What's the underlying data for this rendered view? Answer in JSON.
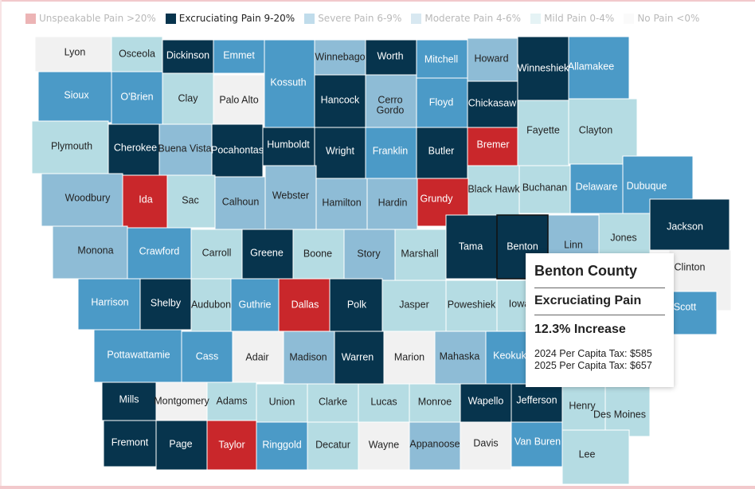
{
  "colors": {
    "unspeakable": "#c9272b",
    "excruciating": "#07344d",
    "severe": "#4b9ac7",
    "moderate": "#8ebcd6",
    "mild": "#b5dce3",
    "none": "#f1f1f1",
    "label_light": "#ffffff",
    "label_dark": "#222222"
  },
  "legend": [
    {
      "label": "Unspeakable Pain >20%",
      "category": "unspeakable",
      "active": false
    },
    {
      "label": "Excruciating Pain 9-20%",
      "category": "excruciating",
      "active": true
    },
    {
      "label": "Severe Pain 6-9%",
      "category": "severe",
      "active": false
    },
    {
      "label": "Moderate Pain 4-6%",
      "category": "moderate",
      "active": false
    },
    {
      "label": "Mild Pain 0-4%",
      "category": "mild",
      "active": false
    },
    {
      "label": "No Pain <0%",
      "category": "none",
      "active": false
    }
  ],
  "counties": [
    {
      "name": "Lyon",
      "category": "none"
    },
    {
      "name": "Osceola",
      "category": "mild"
    },
    {
      "name": "Dickinson",
      "category": "excruciating"
    },
    {
      "name": "Emmet",
      "category": "severe"
    },
    {
      "name": "Kossuth",
      "category": "severe"
    },
    {
      "name": "Winnebago",
      "category": "moderate"
    },
    {
      "name": "Worth",
      "category": "excruciating"
    },
    {
      "name": "Mitchell",
      "category": "severe"
    },
    {
      "name": "Howard",
      "category": "moderate"
    },
    {
      "name": "Winneshiek",
      "category": "excruciating"
    },
    {
      "name": "Allamakee",
      "category": "severe"
    },
    {
      "name": "Sioux",
      "category": "severe"
    },
    {
      "name": "O'Brien",
      "category": "severe"
    },
    {
      "name": "Clay",
      "category": "mild"
    },
    {
      "name": "Palo Alto",
      "category": "none"
    },
    {
      "name": "Hancock",
      "category": "excruciating"
    },
    {
      "name": "Cerro Gordo",
      "category": "moderate"
    },
    {
      "name": "Floyd",
      "category": "severe"
    },
    {
      "name": "Chickasaw",
      "category": "excruciating"
    },
    {
      "name": "Fayette",
      "category": "mild"
    },
    {
      "name": "Clayton",
      "category": "mild"
    },
    {
      "name": "Plymouth",
      "category": "mild"
    },
    {
      "name": "Cherokee",
      "category": "excruciating"
    },
    {
      "name": "Buena Vista",
      "category": "moderate"
    },
    {
      "name": "Pocahontas",
      "category": "excruciating"
    },
    {
      "name": "Humboldt",
      "category": "excruciating"
    },
    {
      "name": "Wright",
      "category": "excruciating"
    },
    {
      "name": "Franklin",
      "category": "severe"
    },
    {
      "name": "Butler",
      "category": "excruciating"
    },
    {
      "name": "Bremer",
      "category": "unspeakable"
    },
    {
      "name": "Black Hawk",
      "category": "mild"
    },
    {
      "name": "Buchanan",
      "category": "mild"
    },
    {
      "name": "Delaware",
      "category": "severe"
    },
    {
      "name": "Dubuque",
      "category": "severe"
    },
    {
      "name": "Woodbury",
      "category": "moderate"
    },
    {
      "name": "Ida",
      "category": "unspeakable"
    },
    {
      "name": "Sac",
      "category": "mild"
    },
    {
      "name": "Calhoun",
      "category": "moderate"
    },
    {
      "name": "Webster",
      "category": "moderate"
    },
    {
      "name": "Hamilton",
      "category": "moderate"
    },
    {
      "name": "Hardin",
      "category": "moderate"
    },
    {
      "name": "Grundy",
      "category": "unspeakable"
    },
    {
      "name": "Tama",
      "category": "excruciating"
    },
    {
      "name": "Benton",
      "category": "excruciating"
    },
    {
      "name": "Linn",
      "category": "moderate"
    },
    {
      "name": "Jones",
      "category": "mild"
    },
    {
      "name": "Jackson",
      "category": "excruciating"
    },
    {
      "name": "Monona",
      "category": "moderate"
    },
    {
      "name": "Crawford",
      "category": "severe"
    },
    {
      "name": "Carroll",
      "category": "mild"
    },
    {
      "name": "Greene",
      "category": "excruciating"
    },
    {
      "name": "Boone",
      "category": "mild"
    },
    {
      "name": "Story",
      "category": "moderate"
    },
    {
      "name": "Marshall",
      "category": "mild"
    },
    {
      "name": "Clinton",
      "category": "none"
    },
    {
      "name": "Harrison",
      "category": "severe"
    },
    {
      "name": "Shelby",
      "category": "excruciating"
    },
    {
      "name": "Audubon",
      "category": "mild"
    },
    {
      "name": "Guthrie",
      "category": "severe"
    },
    {
      "name": "Dallas",
      "category": "unspeakable"
    },
    {
      "name": "Polk",
      "category": "excruciating"
    },
    {
      "name": "Jasper",
      "category": "mild"
    },
    {
      "name": "Poweshiek",
      "category": "mild"
    },
    {
      "name": "Iowa",
      "category": "mild"
    },
    {
      "name": "Scott",
      "category": "severe"
    },
    {
      "name": "Pottawattamie",
      "category": "severe"
    },
    {
      "name": "Cass",
      "category": "severe"
    },
    {
      "name": "Adair",
      "category": "none"
    },
    {
      "name": "Madison",
      "category": "moderate"
    },
    {
      "name": "Warren",
      "category": "excruciating"
    },
    {
      "name": "Marion",
      "category": "none"
    },
    {
      "name": "Mahaska",
      "category": "moderate"
    },
    {
      "name": "Keokuk",
      "category": "severe"
    },
    {
      "name": "Mills",
      "category": "excruciating"
    },
    {
      "name": "Montgomery",
      "category": "none"
    },
    {
      "name": "Adams",
      "category": "mild"
    },
    {
      "name": "Union",
      "category": "mild"
    },
    {
      "name": "Clarke",
      "category": "mild"
    },
    {
      "name": "Lucas",
      "category": "mild"
    },
    {
      "name": "Monroe",
      "category": "mild"
    },
    {
      "name": "Wapello",
      "category": "excruciating"
    },
    {
      "name": "Jefferson",
      "category": "excruciating"
    },
    {
      "name": "Henry",
      "category": "mild"
    },
    {
      "name": "Des Moines",
      "category": "mild"
    },
    {
      "name": "Fremont",
      "category": "excruciating"
    },
    {
      "name": "Page",
      "category": "excruciating"
    },
    {
      "name": "Taylor",
      "category": "unspeakable"
    },
    {
      "name": "Ringgold",
      "category": "severe"
    },
    {
      "name": "Decatur",
      "category": "mild"
    },
    {
      "name": "Wayne",
      "category": "none"
    },
    {
      "name": "Appanoose",
      "category": "moderate"
    },
    {
      "name": "Davis",
      "category": "none"
    },
    {
      "name": "Van Buren",
      "category": "severe"
    },
    {
      "name": "Lee",
      "category": "mild"
    }
  ],
  "tooltip": {
    "county": "Benton County",
    "category_label": "Excruciating Pain",
    "change": "12.3% Increase",
    "tax_2024": "2024 Per Capita Tax: $585",
    "tax_2025": "2025 Per Capita Tax: $657"
  }
}
